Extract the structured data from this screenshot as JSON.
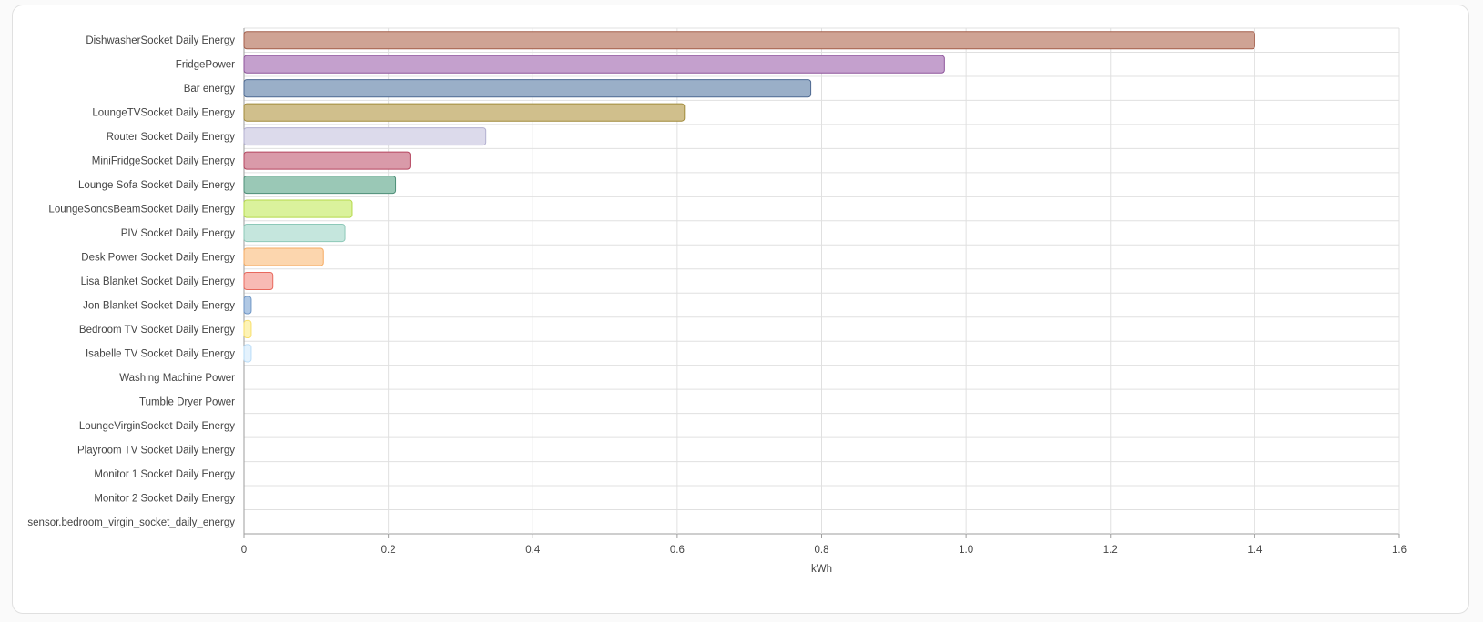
{
  "chart_data": {
    "type": "bar",
    "orientation": "horizontal",
    "xlabel": "kWh",
    "xlim": [
      0,
      1.6
    ],
    "x_ticks": [
      "0",
      "0.2",
      "0.4",
      "0.6",
      "0.8",
      "1.0",
      "1.2",
      "1.4",
      "1.6"
    ],
    "grid": true,
    "categories": [
      "DishwasherSocket Daily Energy",
      "FridgePower",
      "Bar energy",
      "LoungeTVSocket Daily Energy",
      "Router Socket Daily Energy",
      "MiniFridgeSocket Daily Energy",
      "Lounge Sofa Socket Daily Energy",
      "LoungeSonosBeamSocket Daily Energy",
      "PIV Socket Daily Energy",
      "Desk Power Socket Daily Energy",
      "Lisa Blanket Socket Daily Energy",
      "Jon Blanket Socket Daily Energy",
      "Bedroom TV Socket Daily Energy",
      "Isabelle TV Socket Daily Energy",
      "Washing Machine Power",
      "Tumble Dryer Power",
      "LoungeVirginSocket Daily Energy",
      "Playroom TV Socket Daily Energy",
      "Monitor 1 Socket Daily Energy",
      "Monitor 2 Socket Daily Energy",
      "sensor.bedroom_virgin_socket_daily_energy"
    ],
    "values": [
      1.4,
      0.97,
      0.785,
      0.61,
      0.335,
      0.23,
      0.21,
      0.15,
      0.14,
      0.11,
      0.04,
      0.01,
      0.01,
      0.01,
      0,
      0,
      0,
      0,
      0,
      0,
      0
    ],
    "fill_colors": [
      "#cfa394",
      "#c4a0cd",
      "#9aafc8",
      "#d0bf8c",
      "#dcdaeb",
      "#d99aa9",
      "#9ac8b6",
      "#daf29c",
      "#c5e6dd",
      "#fcd6ae",
      "#f8bab4",
      "#b0c8e4",
      "#fdf3b6",
      "#e4f2fd",
      "#e0e0e0",
      "#e0e0e0",
      "#e0e0e0",
      "#e0e0e0",
      "#e0e0e0",
      "#e0e0e0",
      "#e0e0e0"
    ],
    "stroke_colors": [
      "#a45e4a",
      "#8e559b",
      "#4e6a92",
      "#a08a3a",
      "#b3b0d0",
      "#b5455f",
      "#4f8f78",
      "#b5d94a",
      "#8dc8b8",
      "#f5ab62",
      "#e8695e",
      "#6f96c6",
      "#f8df6a",
      "#b9dcf7",
      "#cccccc",
      "#cccccc",
      "#cccccc",
      "#cccccc",
      "#cccccc",
      "#cccccc",
      "#cccccc"
    ]
  }
}
